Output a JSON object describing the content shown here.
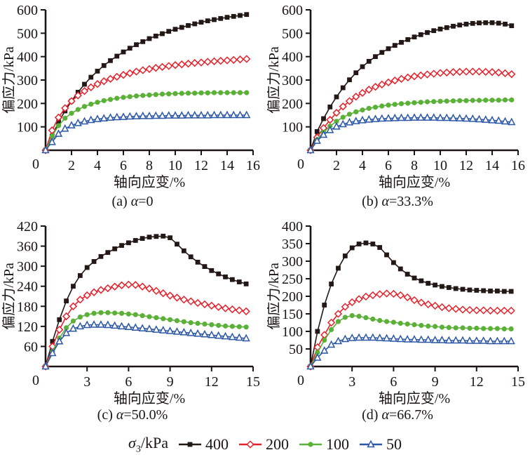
{
  "legend": {
    "sigma": "σ",
    "sub": "3",
    "unit": "/kPa",
    "position": "bottom",
    "items": [
      {
        "label": "400",
        "marker": "square",
        "fill": "solid",
        "color": "#231815"
      },
      {
        "label": "200",
        "marker": "diamond",
        "fill": "open",
        "color": "#e7212b"
      },
      {
        "label": "100",
        "marker": "circle",
        "fill": "solid",
        "color": "#5bb138"
      },
      {
        "label": "50",
        "marker": "triangle",
        "fill": "open",
        "color": "#2c57a7"
      }
    ]
  },
  "chart_data": [
    {
      "type": "line",
      "panel": "a",
      "caption": {
        "prefix": "(a) ",
        "alpha": "α",
        "value": "=0"
      },
      "xlabel": "轴向应变/%",
      "ylabel": "偏应力/kPa",
      "xlim": [
        0,
        16
      ],
      "ylim": [
        0,
        600
      ],
      "xticks": [
        2,
        4,
        6,
        8,
        10,
        12,
        14,
        16
      ],
      "yticks": [
        100,
        200,
        300,
        400,
        500,
        600
      ],
      "origin_label": "0",
      "grid": false,
      "x": [
        0,
        0.5,
        1,
        1.5,
        2,
        2.5,
        3,
        3.5,
        4,
        4.5,
        5,
        5.5,
        6,
        6.5,
        7,
        7.5,
        8,
        8.5,
        9,
        9.5,
        10,
        10.5,
        11,
        11.5,
        12,
        12.5,
        13,
        13.5,
        14,
        14.5,
        15,
        15.5
      ],
      "series": [
        {
          "name": "400",
          "marker": "square",
          "fill": "solid",
          "color": "#231815",
          "y": [
            0,
            60,
            120,
            168,
            210,
            248,
            282,
            312,
            338,
            362,
            383,
            402,
            420,
            436,
            451,
            464,
            477,
            488,
            498,
            508,
            517,
            525,
            533,
            540,
            547,
            553,
            558,
            563,
            568,
            572,
            576,
            580
          ]
        },
        {
          "name": "200",
          "marker": "diamond",
          "fill": "open",
          "color": "#e7212b",
          "y": [
            0,
            85,
            140,
            180,
            210,
            234,
            253,
            269,
            283,
            295,
            305,
            314,
            322,
            329,
            336,
            342,
            347,
            352,
            356,
            360,
            364,
            367,
            370,
            373,
            375,
            378,
            380,
            382,
            384,
            386,
            388,
            390
          ]
        },
        {
          "name": "100",
          "marker": "circle",
          "fill": "solid",
          "color": "#5bb138",
          "y": [
            0,
            60,
            105,
            137,
            158,
            174,
            187,
            197,
            205,
            212,
            217,
            222,
            226,
            229,
            232,
            234,
            236,
            238,
            240,
            241,
            242,
            243,
            244,
            244,
            245,
            245,
            246,
            246,
            246,
            246,
            246,
            246
          ]
        },
        {
          "name": "50",
          "marker": "triangle",
          "fill": "open",
          "color": "#2c57a7",
          "y": [
            0,
            35,
            70,
            92,
            106,
            116,
            123,
            129,
            133,
            136,
            139,
            141,
            142,
            144,
            145,
            146,
            146,
            147,
            147,
            148,
            148,
            148,
            149,
            149,
            149,
            149,
            150,
            150,
            150,
            150,
            150,
            150
          ]
        }
      ]
    },
    {
      "type": "line",
      "panel": "b",
      "caption": {
        "prefix": "(b) ",
        "alpha": "α",
        "value": "=33.3%"
      },
      "xlabel": "轴向应变/%",
      "ylabel": "偏应力/kPa",
      "xlim": [
        0,
        16
      ],
      "ylim": [
        0,
        600
      ],
      "xticks": [
        2,
        4,
        6,
        8,
        10,
        12,
        14,
        16
      ],
      "yticks": [
        100,
        200,
        300,
        400,
        500,
        600
      ],
      "origin_label": "0",
      "grid": false,
      "x": [
        0,
        0.5,
        1,
        1.5,
        2,
        2.5,
        3,
        3.5,
        4,
        4.5,
        5,
        5.5,
        6,
        6.5,
        7,
        7.5,
        8,
        8.5,
        9,
        9.5,
        10,
        10.5,
        11,
        11.5,
        12,
        12.5,
        13,
        13.5,
        14,
        14.5,
        15,
        15.5
      ],
      "series": [
        {
          "name": "400",
          "marker": "square",
          "fill": "solid",
          "color": "#231815",
          "y": [
            0,
            80,
            135,
            185,
            228,
            267,
            301,
            331,
            357,
            380,
            400,
            418,
            434,
            448,
            461,
            473,
            484,
            494,
            503,
            511,
            518,
            524,
            530,
            535,
            539,
            542,
            544,
            545,
            545,
            543,
            539,
            532
          ]
        },
        {
          "name": "200",
          "marker": "diamond",
          "fill": "open",
          "color": "#e7212b",
          "y": [
            0,
            55,
            95,
            130,
            160,
            187,
            210,
            229,
            245,
            259,
            271,
            281,
            290,
            298,
            305,
            311,
            316,
            320,
            324,
            327,
            330,
            332,
            334,
            335,
            336,
            336,
            336,
            335,
            334,
            332,
            329,
            325
          ]
        },
        {
          "name": "100",
          "marker": "circle",
          "fill": "solid",
          "color": "#5bb138",
          "y": [
            0,
            45,
            77,
            103,
            124,
            141,
            154,
            164,
            172,
            179,
            184,
            189,
            193,
            196,
            199,
            201,
            203,
            205,
            207,
            208,
            209,
            210,
            211,
            212,
            212,
            213,
            213,
            214,
            214,
            214,
            215,
            215
          ]
        },
        {
          "name": "50",
          "marker": "triangle",
          "fill": "open",
          "color": "#2c57a7",
          "y": [
            0,
            40,
            66,
            86,
            101,
            111,
            119,
            124,
            128,
            131,
            133,
            135,
            136,
            137,
            138,
            138,
            139,
            139,
            139,
            139,
            138,
            138,
            137,
            136,
            135,
            134,
            132,
            130,
            128,
            126,
            123,
            120
          ]
        }
      ]
    },
    {
      "type": "line",
      "panel": "c",
      "caption": {
        "prefix": "(c) ",
        "alpha": "α",
        "value": "=50.0%"
      },
      "xlabel": "轴向应变/%",
      "ylabel": "偏应力/kPa",
      "xlim": [
        0,
        15
      ],
      "ylim": [
        0,
        420
      ],
      "xticks": [
        3,
        6,
        9,
        12,
        15
      ],
      "yticks": [
        60,
        120,
        180,
        240,
        300,
        360,
        420
      ],
      "origin_label": "0",
      "grid": false,
      "x": [
        0,
        0.5,
        1,
        1.5,
        2,
        2.5,
        3,
        3.5,
        4,
        4.5,
        5,
        5.5,
        6,
        6.5,
        7,
        7.5,
        8,
        8.5,
        9,
        9.5,
        10,
        10.5,
        11,
        11.5,
        12,
        12.5,
        13,
        13.5,
        14,
        14.5
      ],
      "series": [
        {
          "name": "400",
          "marker": "square",
          "fill": "solid",
          "color": "#231815",
          "y": [
            0,
            75,
            140,
            196,
            240,
            272,
            296,
            314,
            329,
            341,
            352,
            362,
            370,
            377,
            383,
            387,
            389,
            390,
            385,
            366,
            346,
            328,
            312,
            299,
            287,
            277,
            268,
            260,
            253,
            247
          ]
        },
        {
          "name": "200",
          "marker": "diamond",
          "fill": "open",
          "color": "#e7212b",
          "y": [
            0,
            60,
            110,
            150,
            180,
            200,
            213,
            222,
            229,
            234,
            239,
            243,
            245,
            244,
            239,
            233,
            226,
            219,
            212,
            206,
            200,
            195,
            190,
            186,
            182,
            178,
            174,
            171,
            168,
            165
          ]
        },
        {
          "name": "100",
          "marker": "circle",
          "fill": "solid",
          "color": "#5bb138",
          "y": [
            0,
            45,
            85,
            116,
            136,
            148,
            155,
            159,
            161,
            161,
            160,
            159,
            157,
            155,
            152,
            149,
            146,
            143,
            140,
            137,
            134,
            131,
            129,
            127,
            125,
            123,
            121,
            120,
            119,
            118
          ]
        },
        {
          "name": "50",
          "marker": "triangle",
          "fill": "open",
          "color": "#2c57a7",
          "y": [
            0,
            40,
            75,
            100,
            113,
            120,
            124,
            125,
            125,
            124,
            122,
            120,
            118,
            116,
            114,
            112,
            110,
            108,
            106,
            104,
            102,
            100,
            98,
            96,
            94,
            92,
            90,
            88,
            86,
            84
          ]
        }
      ]
    },
    {
      "type": "line",
      "panel": "d",
      "caption": {
        "prefix": "(d) ",
        "alpha": "α",
        "value": "=66.7%"
      },
      "xlabel": "轴向应变/%",
      "ylabel": "偏应力/kPa",
      "xlim": [
        0,
        15
      ],
      "ylim": [
        0,
        400
      ],
      "xticks": [
        3,
        6,
        9,
        12,
        15
      ],
      "yticks": [
        50,
        100,
        150,
        200,
        250,
        300,
        350,
        400
      ],
      "origin_label": "0",
      "grid": false,
      "x": [
        0,
        0.5,
        1,
        1.5,
        2,
        2.5,
        3,
        3.5,
        4,
        4.5,
        5,
        5.5,
        6,
        6.5,
        7,
        7.5,
        8,
        8.5,
        9,
        9.5,
        10,
        10.5,
        11,
        11.5,
        12,
        12.5,
        13,
        13.5,
        14,
        14.5
      ],
      "series": [
        {
          "name": "400",
          "marker": "square",
          "fill": "solid",
          "color": "#231815",
          "y": [
            0,
            100,
            175,
            235,
            280,
            315,
            338,
            349,
            352,
            349,
            339,
            318,
            296,
            278,
            263,
            252,
            244,
            237,
            232,
            228,
            225,
            222,
            220,
            218,
            217,
            216,
            215,
            215,
            214,
            214
          ]
        },
        {
          "name": "200",
          "marker": "diamond",
          "fill": "open",
          "color": "#e7212b",
          "y": [
            0,
            55,
            90,
            125,
            150,
            170,
            183,
            192,
            199,
            203,
            206,
            208,
            207,
            203,
            197,
            189,
            182,
            177,
            173,
            169,
            166,
            164,
            162,
            161,
            160,
            160,
            159,
            159,
            159,
            159
          ]
        },
        {
          "name": "100",
          "marker": "circle",
          "fill": "solid",
          "color": "#5bb138",
          "y": [
            0,
            40,
            75,
            105,
            128,
            140,
            145,
            143,
            139,
            135,
            131,
            128,
            126,
            123,
            121,
            119,
            117,
            115,
            114,
            112,
            111,
            110,
            110,
            109,
            109,
            108,
            108,
            108,
            107,
            107
          ]
        },
        {
          "name": "50",
          "marker": "triangle",
          "fill": "open",
          "color": "#2c57a7",
          "y": [
            0,
            25,
            45,
            62,
            72,
            78,
            81,
            82,
            82,
            82,
            81,
            80,
            79,
            78,
            77,
            77,
            76,
            76,
            75,
            75,
            74,
            74,
            74,
            73,
            73,
            73,
            72,
            72,
            72,
            72
          ]
        }
      ]
    }
  ]
}
